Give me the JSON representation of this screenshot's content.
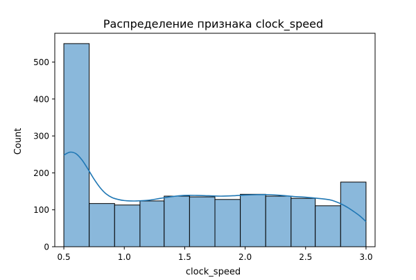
{
  "chart_data": {
    "type": "histogram",
    "title": "Распределение признака clock_speed",
    "xlabel": "clock_speed",
    "ylabel": "Count",
    "xlim": [
      0.425,
      3.075
    ],
    "ylim": [
      0,
      578
    ],
    "xticks": [
      0.5,
      1.0,
      1.5,
      2.0,
      2.5,
      3.0
    ],
    "xtick_labels": [
      "0.5",
      "1.0",
      "1.5",
      "2.0",
      "2.5",
      "3.0"
    ],
    "yticks": [
      0,
      100,
      200,
      300,
      400,
      500
    ],
    "ytick_labels": [
      "0",
      "100",
      "200",
      "300",
      "400",
      "500"
    ],
    "grid": false,
    "bar_color": "#8ab8db",
    "bar_edge_color": "#000000",
    "kde_color": "#1f77b4",
    "bins": [
      {
        "x0": 0.5,
        "x1": 0.71,
        "count": 550
      },
      {
        "x0": 0.71,
        "x1": 0.92,
        "count": 117
      },
      {
        "x0": 0.92,
        "x1": 1.13,
        "count": 113
      },
      {
        "x0": 1.13,
        "x1": 1.33,
        "count": 124
      },
      {
        "x0": 1.33,
        "x1": 1.54,
        "count": 137
      },
      {
        "x0": 1.54,
        "x1": 1.75,
        "count": 135
      },
      {
        "x0": 1.75,
        "x1": 1.96,
        "count": 128
      },
      {
        "x0": 1.96,
        "x1": 2.17,
        "count": 142
      },
      {
        "x0": 2.17,
        "x1": 2.38,
        "count": 137
      },
      {
        "x0": 2.38,
        "x1": 2.58,
        "count": 131
      },
      {
        "x0": 2.58,
        "x1": 2.79,
        "count": 111
      },
      {
        "x0": 2.79,
        "x1": 3.0,
        "count": 175
      }
    ],
    "kde": {
      "x": [
        0.5,
        0.55,
        0.6,
        0.65,
        0.7,
        0.75,
        0.8,
        0.85,
        0.9,
        0.95,
        1.0,
        1.05,
        1.1,
        1.2,
        1.3,
        1.4,
        1.5,
        1.6,
        1.7,
        1.8,
        1.9,
        2.0,
        2.1,
        2.2,
        2.3,
        2.4,
        2.5,
        2.6,
        2.7,
        2.75,
        2.8,
        2.85,
        2.9,
        2.95,
        3.0
      ],
      "y": [
        248,
        256,
        252,
        235,
        210,
        183,
        160,
        143,
        133,
        128,
        125,
        124,
        124,
        126,
        131,
        136,
        139,
        139,
        138,
        137,
        138,
        140,
        141,
        141,
        139,
        136,
        134,
        131,
        127,
        122,
        115,
        106,
        95,
        83,
        68
      ]
    }
  }
}
